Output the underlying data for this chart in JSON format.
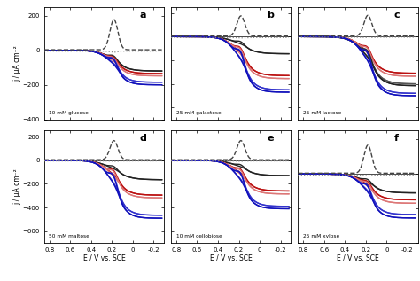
{
  "panels": [
    {
      "label": "a",
      "annotation": "10 mM glucose",
      "ylim": [
        -400,
        250
      ]
    },
    {
      "label": "b",
      "annotation": "25 mM galactose",
      "ylim": [
        -700,
        250
      ]
    },
    {
      "label": "c",
      "annotation": "25 mM lactose",
      "ylim": [
        -700,
        250
      ]
    },
    {
      "label": "d",
      "annotation": "50 mM maltose",
      "ylim": [
        -700,
        250
      ]
    },
    {
      "label": "e",
      "annotation": "10 mM cellobiose",
      "ylim": [
        -700,
        250
      ]
    },
    {
      "label": "f",
      "annotation": "25 mM xylose",
      "ylim": [
        -400,
        250
      ]
    }
  ],
  "xlim_left": 0.85,
  "xlim_right": -0.3,
  "xlabel": "E / V vs. SCE",
  "ylabel": "j / μA cm⁻²"
}
